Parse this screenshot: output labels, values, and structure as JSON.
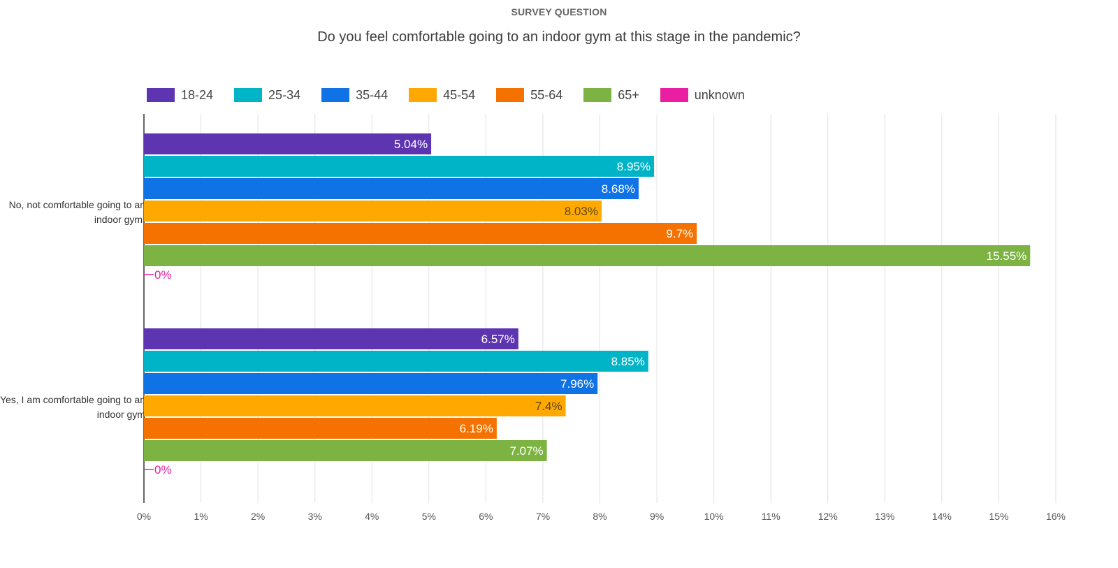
{
  "chart_data": {
    "type": "bar",
    "orientation": "horizontal",
    "kicker": "SURVEY QUESTION",
    "title": "Do you feel comfortable going to an indoor gym at this stage in the pandemic?",
    "categories": [
      "No, not comfortable going to an indoor gym.",
      "Yes, I am comfortable going to an indoor gym"
    ],
    "series": [
      {
        "name": "18-24",
        "color": "#5e35b1",
        "labels": [
          "5.04%",
          "6.57%"
        ],
        "values": [
          5.04,
          6.57
        ],
        "label_color": "#ffffff"
      },
      {
        "name": "25-34",
        "color": "#00b4c8",
        "labels": [
          "8.95%",
          "8.85%"
        ],
        "values": [
          8.95,
          8.85
        ],
        "label_color": "#ffffff"
      },
      {
        "name": "35-44",
        "color": "#0f73e6",
        "labels": [
          "8.68%",
          "7.96%"
        ],
        "values": [
          8.68,
          7.96
        ],
        "label_color": "#ffffff"
      },
      {
        "name": "45-54",
        "color": "#ffa800",
        "labels": [
          "8.03%",
          "7.4%"
        ],
        "values": [
          8.03,
          7.4
        ],
        "label_color": "#5a4a1a"
      },
      {
        "name": "55-64",
        "color": "#f57200",
        "labels": [
          "9.7%",
          "6.19%"
        ],
        "values": [
          9.7,
          6.19
        ],
        "label_color": "#ffffff"
      },
      {
        "name": "65+",
        "color": "#7cb342",
        "labels": [
          "15.55%",
          "7.07%"
        ],
        "values": [
          15.55,
          7.07
        ],
        "label_color": "#ffffff"
      },
      {
        "name": "unknown",
        "color": "#e91ea0",
        "labels": [
          "0%",
          "0%"
        ],
        "values": [
          0,
          0
        ],
        "label_color": "#e91ea0"
      }
    ],
    "xlim": [
      0,
      16
    ],
    "x_ticks": [
      "0%",
      "1%",
      "2%",
      "3%",
      "4%",
      "5%",
      "6%",
      "7%",
      "8%",
      "9%",
      "10%",
      "11%",
      "12%",
      "13%",
      "14%",
      "15%",
      "16%"
    ],
    "xlabel": "",
    "ylabel": "",
    "grid": true,
    "legend_position": "top-left"
  }
}
